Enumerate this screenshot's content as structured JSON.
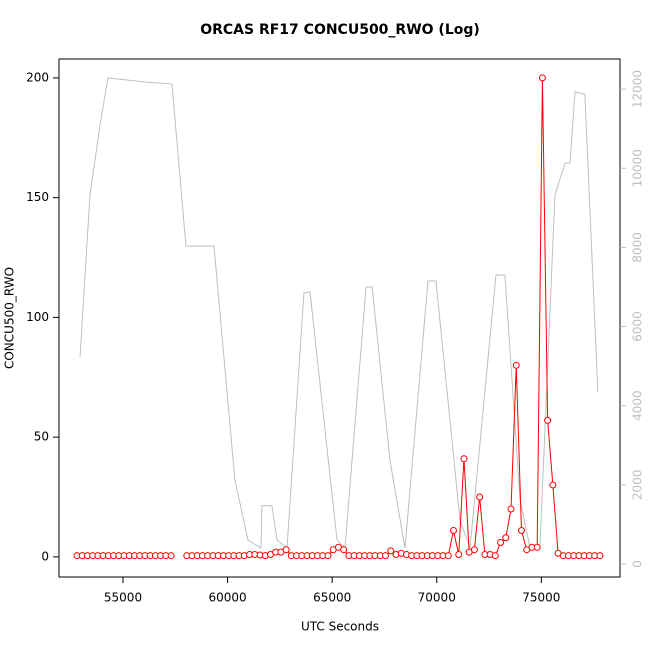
{
  "chart_data": {
    "type": "line",
    "title": "ORCAS RF17 CONCU500_RWO (Log)",
    "xlabel": "UTC Seconds",
    "ylabel": "CONCU500_RWO",
    "xlim": [
      51940,
      78760
    ],
    "xticks": [
      55000,
      60000,
      65000,
      70000,
      75000
    ],
    "ylim": [
      -8.4,
      207.9
    ],
    "yticks": [
      0,
      50,
      100,
      150,
      200
    ],
    "y2lim": [
      -330,
      12760
    ],
    "y2ticks": [
      0,
      2000,
      4000,
      6000,
      8000,
      10000,
      12000
    ],
    "y2color": "#bebebe",
    "series": [
      {
        "color": "#bebebe",
        "axis": "y2",
        "markers": false,
        "x": [
          52945,
          53420,
          53900,
          54280,
          56050,
          57340,
          58010,
          59350,
          60350,
          60970,
          61600,
          61640,
          62120,
          62360,
          62840,
          63650,
          63940,
          65230,
          65610,
          66620,
          66910,
          67760,
          68480,
          69580,
          69960,
          71110,
          71590,
          72830,
          73260,
          73980,
          74460,
          74930,
          75650,
          76130,
          76370,
          76610,
          77080,
          77700
        ],
        "values": [
          5230,
          9320,
          11090,
          12280,
          12180,
          12130,
          8030,
          8030,
          2120,
          610,
          400,
          1470,
          1470,
          610,
          400,
          6850,
          6870,
          610,
          400,
          7000,
          7000,
          2630,
          400,
          7150,
          7150,
          1110,
          400,
          7300,
          7300,
          1620,
          400,
          400,
          9320,
          10130,
          10130,
          11930,
          11870,
          4350
        ]
      },
      {
        "color": "#ff0000",
        "axis": "y",
        "markers": true,
        "x": [
          52800,
          53050,
          53300,
          53550,
          53800,
          54050,
          54300,
          54550,
          54800,
          55050,
          55300,
          55550,
          55800,
          56050,
          56300,
          56550,
          56800,
          57050,
          57300,
          57550,
          57800,
          58050,
          58300,
          58550,
          58800,
          59050,
          59300,
          59550,
          59800,
          60050,
          60300,
          60550,
          60800,
          61050,
          61300,
          61550,
          61800,
          62050,
          62300,
          62550,
          62800,
          63050,
          63300,
          63550,
          63800,
          64050,
          64300,
          64550,
          64800,
          65050,
          65300,
          65550,
          65800,
          66050,
          66300,
          66550,
          66800,
          67050,
          67300,
          67550,
          67800,
          68050,
          68300,
          68550,
          68800,
          69050,
          69300,
          69550,
          69800,
          70050,
          70300,
          70550,
          70800,
          71050,
          71300,
          71550,
          71800,
          72050,
          72300,
          72550,
          72800,
          73050,
          73300,
          73550,
          73800,
          74050,
          74300,
          74550,
          74800,
          75050,
          75300,
          75550,
          75800,
          76050,
          76300,
          76550,
          76800,
          77050,
          77300,
          77550,
          77800
        ],
        "values": [
          0.5,
          0.5,
          0.5,
          0.5,
          0.5,
          0.5,
          0.5,
          0.5,
          0.5,
          0.5,
          0.5,
          0.5,
          0.5,
          0.5,
          0.5,
          0.5,
          0.5,
          0.5,
          0.5,
          null,
          null,
          0.5,
          0.5,
          0.5,
          0.5,
          0.5,
          0.5,
          0.5,
          0.5,
          0.5,
          0.5,
          0.5,
          0.5,
          1,
          1,
          0.8,
          0.5,
          1,
          2,
          2,
          3,
          0.5,
          0.5,
          0.5,
          0.5,
          0.5,
          0.5,
          0.5,
          0.5,
          3,
          4,
          3,
          0.5,
          0.5,
          0.5,
          0.5,
          0.5,
          0.5,
          0.5,
          0.5,
          2.5,
          1,
          1.5,
          1,
          0.5,
          0.5,
          0.5,
          0.5,
          0.5,
          0.5,
          0.5,
          0.5,
          11,
          1,
          41,
          2,
          3,
          25,
          1,
          1,
          0.5,
          6,
          8,
          20,
          80,
          11,
          3,
          4,
          4,
          200,
          57,
          30,
          1.5,
          0.5,
          0.5,
          0.5,
          0.5,
          0.5,
          0.5,
          0.5,
          0.5
        ]
      }
    ]
  }
}
